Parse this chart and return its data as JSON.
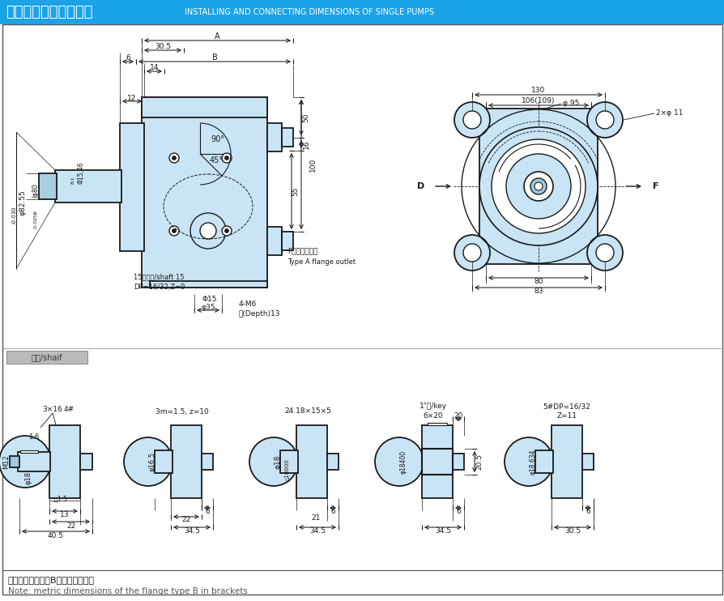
{
  "title_chinese": "单泵外形安装连接尺寸",
  "title_english": "INSTALLING AND CONNECTING DIMENSIONS OF SINGLE PUMPS",
  "title_bg_color": "#1ba3e8",
  "title_text_color": "#ffffff",
  "bg_color": "#ffffff",
  "light_blue": "#c8e4f5",
  "line_color": "#1a1a1a",
  "dim_color": "#1a1a1a",
  "note_chinese": "注：括号内尺寸为B型公制法兰尺寸",
  "note_english": "Note: metric dimensions of the flange type B in brackets",
  "shaft_label": "轴件/shaif"
}
